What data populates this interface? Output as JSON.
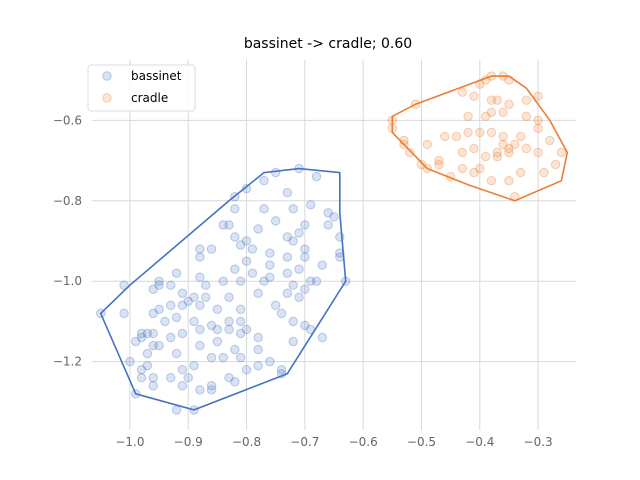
{
  "chart_data": {
    "type": "scatter",
    "title": "bassinet -> cradle; 0.60",
    "xlabel": "",
    "ylabel": "",
    "xlim": [
      -1.065,
      -0.235
    ],
    "ylim": [
      -1.37,
      -0.45
    ],
    "grid": true,
    "legend_position": "top-left",
    "x_ticks": [
      -1.0,
      -0.9,
      -0.8,
      -0.7,
      -0.6,
      -0.5,
      -0.4,
      -0.3
    ],
    "x_tick_labels": [
      "−1.0",
      "−0.9",
      "−0.8",
      "−0.7",
      "−0.6",
      "−0.5",
      "−0.4",
      "−0.3"
    ],
    "y_ticks": [
      -0.6,
      -0.8,
      -1.0,
      -1.2
    ],
    "y_tick_labels": [
      "−0.6",
      "−0.8",
      "−1.0",
      "−1.2"
    ],
    "series": [
      {
        "name": "bassinet",
        "color": "#4472c4",
        "points": [
          [
            -0.71,
            -0.72
          ],
          [
            -0.68,
            -0.74
          ],
          [
            -0.75,
            -0.73
          ],
          [
            -0.77,
            -0.75
          ],
          [
            -0.8,
            -0.77
          ],
          [
            -0.82,
            -0.79
          ],
          [
            -0.73,
            -0.78
          ],
          [
            -0.69,
            -0.81
          ],
          [
            -0.72,
            -0.82
          ],
          [
            -0.66,
            -0.83
          ],
          [
            -0.65,
            -0.84
          ],
          [
            -0.77,
            -0.82
          ],
          [
            -0.82,
            -0.82
          ],
          [
            -0.75,
            -0.85
          ],
          [
            -0.7,
            -0.86
          ],
          [
            -0.66,
            -0.86
          ],
          [
            -0.78,
            -0.87
          ],
          [
            -0.81,
            -0.91
          ],
          [
            -0.79,
            -0.92
          ],
          [
            -0.76,
            -0.93
          ],
          [
            -0.71,
            -0.88
          ],
          [
            -0.73,
            -0.89
          ],
          [
            -0.83,
            -0.86
          ],
          [
            -0.84,
            -0.86
          ],
          [
            -0.88,
            -0.94
          ],
          [
            -0.88,
            -0.92
          ],
          [
            -0.86,
            -0.92
          ],
          [
            -0.82,
            -0.89
          ],
          [
            -0.8,
            -0.9
          ],
          [
            -0.72,
            -0.9
          ],
          [
            -0.7,
            -0.92
          ],
          [
            -0.64,
            -0.89
          ],
          [
            -0.64,
            -0.93
          ],
          [
            -0.67,
            -0.96
          ],
          [
            -0.7,
            -0.94
          ],
          [
            -0.73,
            -0.94
          ],
          [
            -0.76,
            -0.96
          ],
          [
            -0.8,
            -0.95
          ],
          [
            -0.82,
            -0.97
          ],
          [
            -0.79,
            -0.98
          ],
          [
            -0.76,
            -0.99
          ],
          [
            -0.73,
            -0.98
          ],
          [
            -0.71,
            -0.97
          ],
          [
            -0.69,
            -1.0
          ],
          [
            -0.72,
            -1.01
          ],
          [
            -0.77,
            -1.0
          ],
          [
            -0.81,
            -1.0
          ],
          [
            -0.84,
            -1.0
          ],
          [
            -0.87,
            -1.01
          ],
          [
            -0.88,
            -0.99
          ],
          [
            -0.92,
            -0.98
          ],
          [
            -0.93,
            -1.01
          ],
          [
            -0.95,
            -1.0
          ],
          [
            -0.95,
            -1.01
          ],
          [
            -0.96,
            -1.02
          ],
          [
            -0.91,
            -1.03
          ],
          [
            -0.89,
            -1.04
          ],
          [
            -0.87,
            -1.04
          ],
          [
            -0.83,
            -1.04
          ],
          [
            -0.78,
            -1.03
          ],
          [
            -0.73,
            -1.03
          ],
          [
            -0.7,
            -1.02
          ],
          [
            -0.71,
            -1.04
          ],
          [
            -0.68,
            -1.0
          ],
          [
            -0.75,
            -1.06
          ],
          [
            -0.81,
            -1.07
          ],
          [
            -0.85,
            -1.07
          ],
          [
            -0.88,
            -1.06
          ],
          [
            -0.9,
            -1.05
          ],
          [
            -0.91,
            -1.06
          ],
          [
            -0.93,
            -1.06
          ],
          [
            -0.95,
            -1.07
          ],
          [
            -0.96,
            -1.08
          ],
          [
            -0.94,
            -1.1
          ],
          [
            -0.92,
            -1.09
          ],
          [
            -0.89,
            -1.1
          ],
          [
            -0.86,
            -1.11
          ],
          [
            -0.83,
            -1.1
          ],
          [
            -0.81,
            -1.1
          ],
          [
            -0.8,
            -1.12
          ],
          [
            -0.74,
            -1.08
          ],
          [
            -0.72,
            -1.1
          ],
          [
            -0.7,
            -1.11
          ],
          [
            -0.69,
            -1.12
          ],
          [
            -0.67,
            -1.14
          ],
          [
            -0.72,
            -1.15
          ],
          [
            -0.78,
            -1.14
          ],
          [
            -0.81,
            -1.13
          ],
          [
            -0.83,
            -1.12
          ],
          [
            -0.85,
            -1.12
          ],
          [
            -0.88,
            -1.12
          ],
          [
            -0.91,
            -1.13
          ],
          [
            -0.93,
            -1.14
          ],
          [
            -0.96,
            -1.13
          ],
          [
            -0.97,
            -1.13
          ],
          [
            -0.98,
            -1.13
          ],
          [
            -0.98,
            -1.14
          ],
          [
            -0.99,
            -1.15
          ],
          [
            -0.96,
            -1.16
          ],
          [
            -0.95,
            -1.16
          ],
          [
            -0.92,
            -1.18
          ],
          [
            -0.88,
            -1.16
          ],
          [
            -0.85,
            -1.15
          ],
          [
            -0.82,
            -1.17
          ],
          [
            -0.78,
            -1.17
          ],
          [
            -0.76,
            -1.2
          ],
          [
            -0.74,
            -1.22
          ],
          [
            -0.81,
            -1.19
          ],
          [
            -0.84,
            -1.19
          ],
          [
            -0.86,
            -1.19
          ],
          [
            -0.89,
            -1.21
          ],
          [
            -0.91,
            -1.22
          ],
          [
            -0.93,
            -1.24
          ],
          [
            -0.97,
            -1.18
          ],
          [
            -0.97,
            -1.21
          ],
          [
            -0.98,
            -1.22
          ],
          [
            -0.98,
            -1.24
          ],
          [
            -0.96,
            -1.26
          ],
          [
            -0.91,
            -1.26
          ],
          [
            -0.88,
            -1.27
          ],
          [
            -0.86,
            -1.27
          ],
          [
            -0.83,
            -1.24
          ],
          [
            -0.8,
            -1.22
          ],
          [
            -0.82,
            -1.25
          ],
          [
            -0.78,
            -1.21
          ],
          [
            -0.74,
            -1.23
          ],
          [
            -0.92,
            -1.32
          ],
          [
            -0.89,
            -1.32
          ],
          [
            -0.99,
            -1.28
          ],
          [
            -1.05,
            -1.08
          ],
          [
            -1.01,
            -1.01
          ],
          [
            -1.01,
            -1.08
          ],
          [
            -1.0,
            -1.2
          ],
          [
            -0.63,
            -1.0
          ],
          [
            -0.64,
            -0.94
          ],
          [
            -0.96,
            -1.24
          ],
          [
            -0.86,
            -1.26
          ],
          [
            -0.9,
            -1.24
          ]
        ],
        "hull": [
          [
            -0.71,
            -0.72
          ],
          [
            -0.64,
            -0.73
          ],
          [
            -0.64,
            -0.83
          ],
          [
            -0.63,
            -1.0
          ],
          [
            -0.73,
            -1.23
          ],
          [
            -0.89,
            -1.32
          ],
          [
            -0.99,
            -1.28
          ],
          [
            -1.05,
            -1.08
          ],
          [
            -1.0,
            -1.01
          ],
          [
            -0.83,
            -0.8
          ],
          [
            -0.77,
            -0.73
          ],
          [
            -0.71,
            -0.72
          ]
        ]
      },
      {
        "name": "cradle",
        "color": "#ed7d31",
        "points": [
          [
            -0.38,
            -0.49
          ],
          [
            -0.36,
            -0.49
          ],
          [
            -0.35,
            -0.5
          ],
          [
            -0.39,
            -0.5
          ],
          [
            -0.4,
            -0.51
          ],
          [
            -0.43,
            -0.53
          ],
          [
            -0.41,
            -0.54
          ],
          [
            -0.38,
            -0.55
          ],
          [
            -0.37,
            -0.55
          ],
          [
            -0.35,
            -0.56
          ],
          [
            -0.32,
            -0.55
          ],
          [
            -0.3,
            -0.54
          ],
          [
            -0.36,
            -0.58
          ],
          [
            -0.38,
            -0.58
          ],
          [
            -0.39,
            -0.59
          ],
          [
            -0.42,
            -0.59
          ],
          [
            -0.32,
            -0.59
          ],
          [
            -0.3,
            -0.6
          ],
          [
            -0.3,
            -0.62
          ],
          [
            -0.36,
            -0.64
          ],
          [
            -0.38,
            -0.63
          ],
          [
            -0.4,
            -0.63
          ],
          [
            -0.42,
            -0.63
          ],
          [
            -0.44,
            -0.64
          ],
          [
            -0.46,
            -0.64
          ],
          [
            -0.49,
            -0.66
          ],
          [
            -0.53,
            -0.66
          ],
          [
            -0.52,
            -0.68
          ],
          [
            -0.5,
            -0.71
          ],
          [
            -0.47,
            -0.7
          ],
          [
            -0.43,
            -0.68
          ],
          [
            -0.41,
            -0.67
          ],
          [
            -0.39,
            -0.69
          ],
          [
            -0.37,
            -0.69
          ],
          [
            -0.35,
            -0.68
          ],
          [
            -0.34,
            -0.66
          ],
          [
            -0.32,
            -0.67
          ],
          [
            -0.3,
            -0.68
          ],
          [
            -0.28,
            -0.65
          ],
          [
            -0.26,
            -0.68
          ],
          [
            -0.27,
            -0.71
          ],
          [
            -0.29,
            -0.73
          ],
          [
            -0.33,
            -0.73
          ],
          [
            -0.35,
            -0.75
          ],
          [
            -0.38,
            -0.75
          ],
          [
            -0.4,
            -0.72
          ],
          [
            -0.43,
            -0.72
          ],
          [
            -0.45,
            -0.74
          ],
          [
            -0.47,
            -0.71
          ],
          [
            -0.49,
            -0.72
          ],
          [
            -0.53,
            -0.65
          ],
          [
            -0.55,
            -0.62
          ],
          [
            -0.55,
            -0.6
          ],
          [
            -0.51,
            -0.56
          ],
          [
            -0.34,
            -0.79
          ],
          [
            -0.41,
            -0.73
          ],
          [
            -0.37,
            -0.68
          ],
          [
            -0.35,
            -0.67
          ],
          [
            -0.33,
            -0.64
          ],
          [
            -0.36,
            -0.66
          ]
        ],
        "hull": [
          [
            -0.38,
            -0.49
          ],
          [
            -0.35,
            -0.49
          ],
          [
            -0.32,
            -0.52
          ],
          [
            -0.28,
            -0.6
          ],
          [
            -0.25,
            -0.68
          ],
          [
            -0.26,
            -0.75
          ],
          [
            -0.34,
            -0.8
          ],
          [
            -0.42,
            -0.76
          ],
          [
            -0.49,
            -0.72
          ],
          [
            -0.55,
            -0.63
          ],
          [
            -0.55,
            -0.59
          ],
          [
            -0.51,
            -0.56
          ],
          [
            -0.38,
            -0.49
          ]
        ]
      }
    ]
  }
}
